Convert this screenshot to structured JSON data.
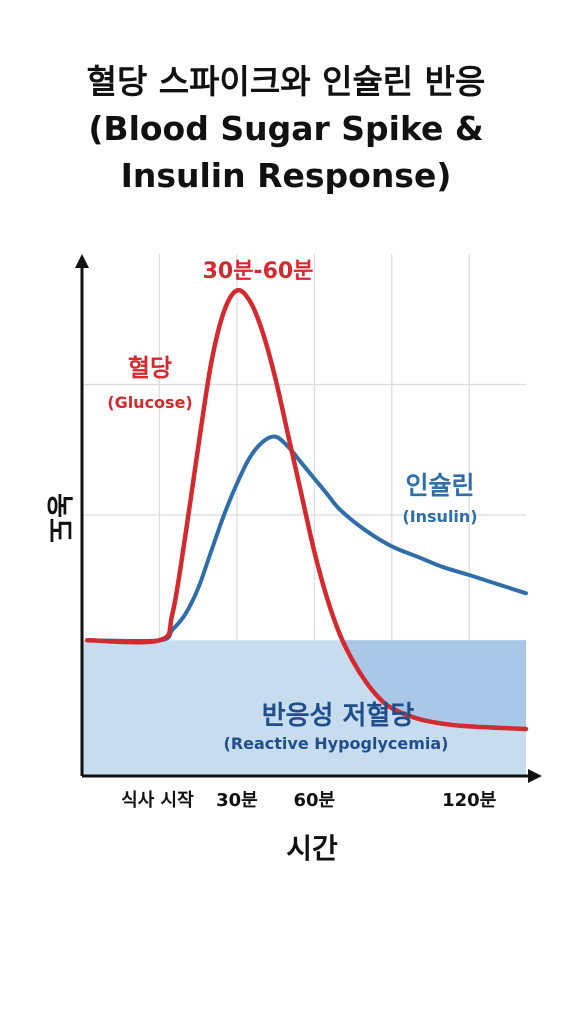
{
  "title_line1": "혈당 스파이크와 인슐린 반응",
  "title_line2": "(Blood Sugar Spike &",
  "title_line3": "Insulin Response)",
  "colors": {
    "glucose": "#d42a2f",
    "insulin": "#2f6ea8",
    "hypo_region": "#c8dcf0",
    "hypo_overlap": "#a9c7e6",
    "hypo_text": "#1f4f8a",
    "grid": "#dcdcdc",
    "axis": "#111111"
  },
  "chart_data": {
    "type": "line",
    "title": "혈당 스파이크와 인슐린 반응 (Blood Sugar Spike & Insulin Response)",
    "xlabel": "시간",
    "ylabel": "농도",
    "x_tick_labels": [
      "식사 시작",
      "30분",
      "60분",
      "120분"
    ],
    "x_tick_values": [
      0,
      30,
      60,
      120
    ],
    "xlim": [
      -30,
      142
    ],
    "ylim": [
      0,
      100
    ],
    "grid": true,
    "baseline": 26,
    "series": [
      {
        "name": "혈당",
        "name_en": "(Glucose)",
        "color": "#d42a2f",
        "peak_label": "30분-60분",
        "points": [
          [
            -28,
            26
          ],
          [
            0,
            26
          ],
          [
            5,
            31
          ],
          [
            10,
            46
          ],
          [
            15,
            63
          ],
          [
            20,
            79
          ],
          [
            25,
            89
          ],
          [
            30,
            93
          ],
          [
            35,
            91
          ],
          [
            40,
            85
          ],
          [
            45,
            76
          ],
          [
            50,
            65
          ],
          [
            55,
            54
          ],
          [
            60,
            43
          ],
          [
            65,
            34
          ],
          [
            70,
            27
          ],
          [
            75,
            22
          ],
          [
            80,
            18
          ],
          [
            85,
            15
          ],
          [
            90,
            13
          ],
          [
            100,
            11
          ],
          [
            110,
            10
          ],
          [
            120,
            9.5
          ],
          [
            142,
            9
          ]
        ]
      },
      {
        "name": "인슐린",
        "name_en": "(Insulin)",
        "color": "#2f6ea8",
        "points": [
          [
            -28,
            26
          ],
          [
            0,
            26
          ],
          [
            5,
            28
          ],
          [
            10,
            31
          ],
          [
            15,
            36
          ],
          [
            20,
            43
          ],
          [
            25,
            50
          ],
          [
            30,
            56
          ],
          [
            35,
            61
          ],
          [
            40,
            64
          ],
          [
            45,
            65
          ],
          [
            50,
            63
          ],
          [
            55,
            60
          ],
          [
            60,
            57
          ],
          [
            65,
            54
          ],
          [
            70,
            51
          ],
          [
            80,
            47
          ],
          [
            90,
            44
          ],
          [
            100,
            42
          ],
          [
            110,
            40
          ],
          [
            120,
            38.5
          ],
          [
            142,
            35
          ]
        ]
      }
    ],
    "annotations": [
      {
        "text": "반응성 저혈당",
        "text_en": "(Reactive Hypoglycemia)",
        "region_below": 26
      }
    ]
  }
}
